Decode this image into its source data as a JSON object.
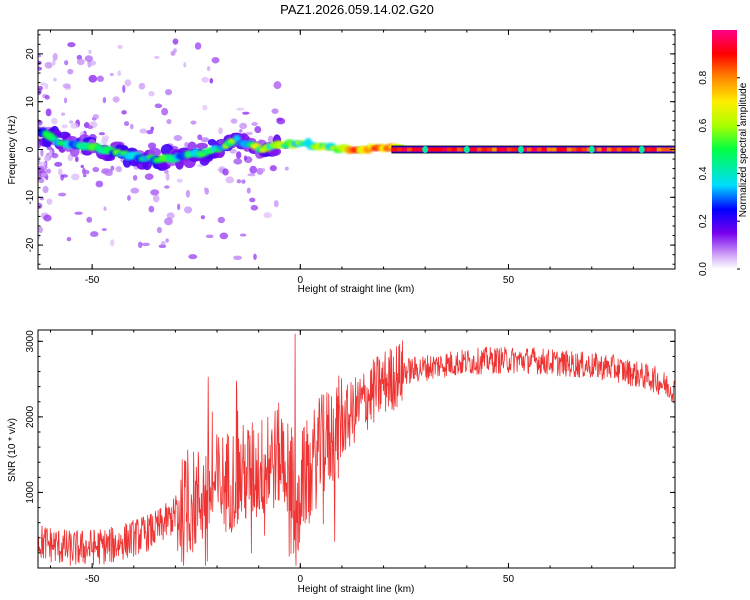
{
  "title": "PAZ1.2026.059.14.02.G20",
  "chart_data": [
    {
      "type": "heatmap",
      "xlabel": "Height of straight line (km)",
      "ylabel": "Frequency (Hz)",
      "xlim": [
        -63,
        90
      ],
      "ylim": [
        -25,
        25
      ],
      "xticks": [
        -50,
        0,
        50
      ],
      "yticks": [
        -20,
        -10,
        0,
        10,
        20
      ],
      "colorbar": {
        "label": "Normalized spectral amplitude",
        "ticks": [
          "0.0",
          "0.2",
          "0.4",
          "0.6",
          "0.8"
        ],
        "range": [
          0,
          1
        ]
      },
      "trace": {
        "description_points": [
          {
            "x": -62,
            "f": 3.5
          },
          {
            "x": -58,
            "f": 1.5
          },
          {
            "x": -50,
            "f": 0.5
          },
          {
            "x": -42,
            "f": -1
          },
          {
            "x": -35,
            "f": -2
          },
          {
            "x": -28,
            "f": -1.5
          },
          {
            "x": -20,
            "f": 0
          },
          {
            "x": -15,
            "f": 2
          },
          {
            "x": -10,
            "f": 0
          },
          {
            "x": 0,
            "f": 1.5
          },
          {
            "x": 10,
            "f": 0
          },
          {
            "x": 20,
            "f": 0.5
          },
          {
            "x": 25,
            "f": 0
          },
          {
            "x": 90,
            "f": 0
          }
        ]
      }
    },
    {
      "type": "line",
      "xlabel": "Height of straight line (km)",
      "ylabel": "SNR (10 * v/v)",
      "xlim": [
        -63,
        90
      ],
      "ylim": [
        0,
        3150
      ],
      "xticks": [
        -50,
        0,
        50
      ],
      "yticks": [
        1000,
        2000,
        3000
      ],
      "color": "#ee3333",
      "envelope": [
        {
          "x": -63,
          "y": 350
        },
        {
          "x": -55,
          "y": 250
        },
        {
          "x": -45,
          "y": 300
        },
        {
          "x": -35,
          "y": 500
        },
        {
          "x": -25,
          "y": 900
        },
        {
          "x": -20,
          "y": 1100
        },
        {
          "x": -10,
          "y": 1300
        },
        {
          "x": -5,
          "y": 1500
        },
        {
          "x": 0,
          "y": 1100
        },
        {
          "x": 5,
          "y": 1600
        },
        {
          "x": 10,
          "y": 1900
        },
        {
          "x": 15,
          "y": 2200
        },
        {
          "x": 20,
          "y": 2450
        },
        {
          "x": 25,
          "y": 2600
        },
        {
          "x": 35,
          "y": 2700
        },
        {
          "x": 45,
          "y": 2750
        },
        {
          "x": 55,
          "y": 2750
        },
        {
          "x": 65,
          "y": 2700
        },
        {
          "x": 75,
          "y": 2650
        },
        {
          "x": 85,
          "y": 2500
        },
        {
          "x": 90,
          "y": 2350
        }
      ]
    }
  ]
}
